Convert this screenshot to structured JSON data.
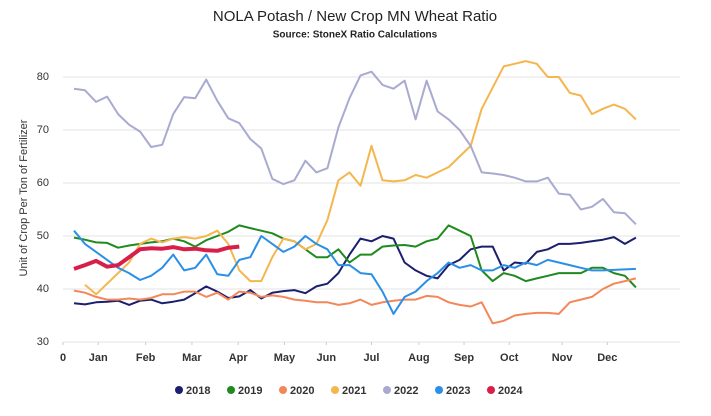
{
  "chart_data": {
    "type": "line",
    "title": "NOLA Potash / New Crop MN Wheat Ratio",
    "subtitle": "Source: StoneX Ratio Calculations",
    "y_label": "Unit of Crop Per Ton of Fertilizer",
    "x": [
      1,
      2,
      3,
      4,
      5,
      6,
      7,
      8,
      9,
      10,
      11,
      12,
      13,
      14,
      15,
      16,
      17,
      18,
      19,
      20,
      21,
      22,
      23,
      24,
      25,
      26,
      27,
      28,
      29,
      30,
      31,
      32,
      33,
      34,
      35,
      36,
      37,
      38,
      39,
      40,
      41,
      42,
      43,
      44,
      45,
      46,
      47,
      48,
      49,
      50,
      51,
      52
    ],
    "xlim": [
      0,
      56
    ],
    "xticks": [
      0,
      {
        "value": 3.2,
        "label": "Jan"
      },
      {
        "value": 7.5,
        "label": "Feb"
      },
      {
        "value": 11.7,
        "label": "Mar"
      },
      {
        "value": 15.9,
        "label": "Apr"
      },
      {
        "value": 20.1,
        "label": "May"
      },
      {
        "value": 23.9,
        "label": "Jun"
      },
      {
        "value": 28,
        "label": "Jul"
      },
      {
        "value": 32.3,
        "label": "Aug"
      },
      {
        "value": 36.4,
        "label": "Sep"
      },
      {
        "value": 40.5,
        "label": "Oct"
      },
      {
        "value": 45.3,
        "label": "Nov"
      },
      {
        "value": 49.4,
        "label": "Dec"
      }
    ],
    "ylim": [
      30,
      85
    ],
    "yticks": [
      30,
      40,
      50,
      60,
      70,
      80
    ],
    "grid": true,
    "legend": "bottom",
    "series": [
      {
        "name": "2018",
        "color": "#1b1f6e",
        "values": [
          37.3,
          37.1,
          37.5,
          37.6,
          37.8,
          37.0,
          37.8,
          38.0,
          37.3,
          37.6,
          38.0,
          39.2,
          40.5,
          39.5,
          38.3,
          38.6,
          39.8,
          38.2,
          39.3,
          39.6,
          39.8,
          39.2,
          40.5,
          41.0,
          43.0,
          46.5,
          49.5,
          49.0,
          50.0,
          49.5,
          45.0,
          43.5,
          42.5,
          42.0,
          44.5,
          45.5,
          47.5,
          48.0,
          48.0,
          43.5,
          45.0,
          44.8,
          47.0,
          47.5,
          48.5,
          48.5,
          48.7,
          49.0,
          49.3,
          49.8,
          48.5,
          49.7
        ]
      },
      {
        "name": "2019",
        "color": "#1f8a1f",
        "values": [
          49.7,
          49.3,
          48.8,
          48.7,
          47.8,
          48.2,
          48.5,
          48.8,
          49.0,
          49.5,
          49.0,
          48.0,
          49.2,
          50.0,
          50.8,
          52.0,
          51.5,
          51.0,
          50.5,
          49.5,
          49.0,
          47.5,
          46.0,
          46.0,
          47.5,
          45.0,
          46.5,
          46.5,
          48.0,
          48.2,
          48.3,
          48.0,
          49.0,
          49.5,
          52.0,
          51.0,
          50.0,
          43.5,
          41.5,
          43.0,
          42.5,
          41.5,
          42.0,
          42.5,
          43.0,
          43.0,
          43.0,
          44.0,
          44.0,
          43.0,
          42.5,
          40.3
        ]
      },
      {
        "name": "2020",
        "color": "#f4875a",
        "values": [
          39.7,
          39.3,
          38.5,
          38.0,
          38.0,
          38.2,
          38.0,
          38.3,
          39.0,
          39.0,
          39.5,
          39.5,
          38.5,
          39.3,
          38.0,
          39.5,
          39.3,
          38.5,
          38.8,
          38.5,
          38.0,
          37.8,
          37.5,
          37.5,
          37.0,
          37.3,
          38.0,
          37.0,
          37.5,
          37.8,
          38.0,
          38.0,
          38.7,
          38.5,
          37.5,
          37.0,
          36.7,
          37.5,
          33.5,
          34.0,
          35.0,
          35.3,
          35.5,
          35.5,
          35.3,
          37.5,
          38.0,
          38.5,
          40.0,
          41.0,
          41.5,
          42.0
        ]
      },
      {
        "name": "2021",
        "color": "#f5b64e",
        "values": [
          null,
          40.8,
          39.0,
          41.0,
          43.0,
          45.0,
          48.5,
          49.5,
          48.8,
          49.5,
          49.8,
          49.5,
          50.0,
          51.0,
          48.5,
          43.5,
          41.5,
          41.5,
          46.0,
          49.5,
          49.0,
          47.5,
          48.5,
          53.0,
          60.5,
          62.0,
          59.5,
          67.0,
          60.5,
          60.3,
          60.5,
          61.5,
          61.0,
          62.0,
          63.0,
          65.0,
          67.0,
          74.0,
          78.0,
          82.0,
          82.5,
          83.0,
          82.5,
          80.0,
          80.0,
          77.0,
          76.5,
          73.0,
          74.0,
          74.8,
          74.0,
          72.0
        ]
      },
      {
        "name": "2022",
        "color": "#a9aad0",
        "values": [
          77.8,
          77.5,
          75.3,
          76.3,
          73.0,
          71.0,
          69.7,
          66.8,
          67.2,
          73.0,
          76.2,
          76.0,
          79.5,
          75.5,
          72.2,
          71.3,
          68.3,
          66.5,
          60.8,
          59.8,
          60.5,
          64.2,
          62.0,
          62.8,
          70.5,
          76.0,
          80.3,
          81.0,
          78.5,
          77.8,
          79.3,
          72.0,
          79.3,
          73.5,
          72.0,
          70.0,
          67.0,
          62.0,
          61.8,
          61.5,
          61.0,
          60.3,
          60.3,
          61.0,
          58.0,
          57.8,
          55.0,
          55.5,
          57.0,
          54.5,
          54.3,
          52.2
        ]
      },
      {
        "name": "2023",
        "color": "#2b8fe6",
        "values": [
          51.0,
          48.5,
          47.0,
          45.5,
          44.0,
          43.0,
          41.7,
          42.5,
          44.0,
          46.5,
          43.5,
          44.0,
          46.5,
          42.8,
          42.5,
          45.5,
          46.0,
          50.0,
          48.5,
          47.0,
          48.0,
          50.0,
          48.5,
          47.5,
          44.5,
          44.5,
          43.0,
          42.8,
          39.5,
          35.3,
          38.5,
          39.5,
          41.5,
          43.0,
          45.0,
          44.0,
          44.5,
          43.5,
          43.5,
          44.5,
          44.0,
          45.0,
          44.5,
          45.5,
          45.0,
          44.5,
          44.0,
          43.5,
          43.5,
          43.6,
          43.7,
          43.8
        ]
      },
      {
        "name": "2024",
        "color": "#d6204a",
        "width": 4,
        "values": [
          43.8,
          44.5,
          45.3,
          44.2,
          44.5,
          46.0,
          47.5,
          47.7,
          47.6,
          47.9,
          47.5,
          47.6,
          47.3,
          47.2,
          47.8,
          48.0,
          null,
          null,
          null,
          null,
          null,
          null,
          null,
          null,
          null,
          null,
          null,
          null,
          null,
          null,
          null,
          null,
          null,
          null,
          null,
          null,
          null,
          null,
          null,
          null,
          null,
          null,
          null,
          null,
          null,
          null,
          null,
          null,
          null,
          null,
          null,
          null
        ]
      }
    ]
  }
}
